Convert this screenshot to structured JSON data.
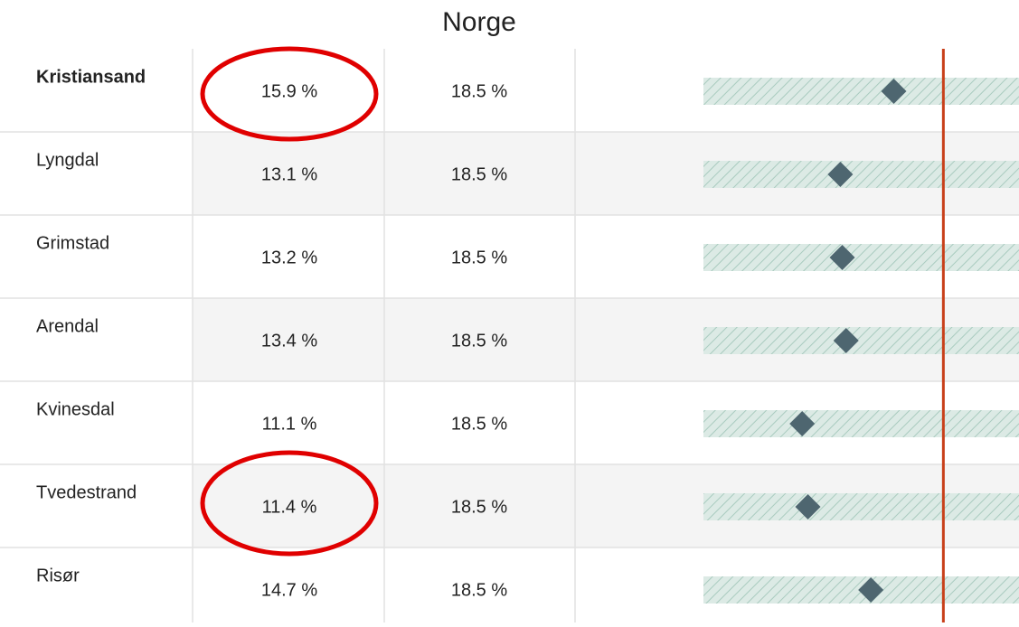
{
  "header": {
    "title": "Norge"
  },
  "rows": [
    {
      "name": "Kristiansand",
      "value": {
        "value": 15.9,
        "label": "15.9 %"
      },
      "norge": {
        "value": 18.5,
        "label": "18.5 %"
      }
    },
    {
      "name": "Lyngdal",
      "value": {
        "value": 13.1,
        "label": "13.1 %"
      },
      "norge": {
        "value": 18.5,
        "label": "18.5 %"
      }
    },
    {
      "name": "Grimstad",
      "value": {
        "value": 13.2,
        "label": "13.2 %"
      },
      "norge": {
        "value": 18.5,
        "label": "18.5 %"
      }
    },
    {
      "name": "Arendal",
      "value": {
        "value": 13.4,
        "label": "13.4 %"
      },
      "norge": {
        "value": 18.5,
        "label": "18.5 %"
      }
    },
    {
      "name": "Kvinesdal",
      "value": {
        "value": 11.1,
        "label": "11.1 %"
      },
      "norge": {
        "value": 18.5,
        "label": "18.5 %"
      }
    },
    {
      "name": "Tvedestrand",
      "value": {
        "value": 11.4,
        "label": "11.4 %"
      },
      "norge": {
        "value": 18.5,
        "label": "18.5 %"
      }
    },
    {
      "name": "Risør",
      "value": {
        "value": 14.7,
        "label": "14.7 %"
      },
      "norge": {
        "value": 18.5,
        "label": "18.5 %"
      }
    }
  ]
}
